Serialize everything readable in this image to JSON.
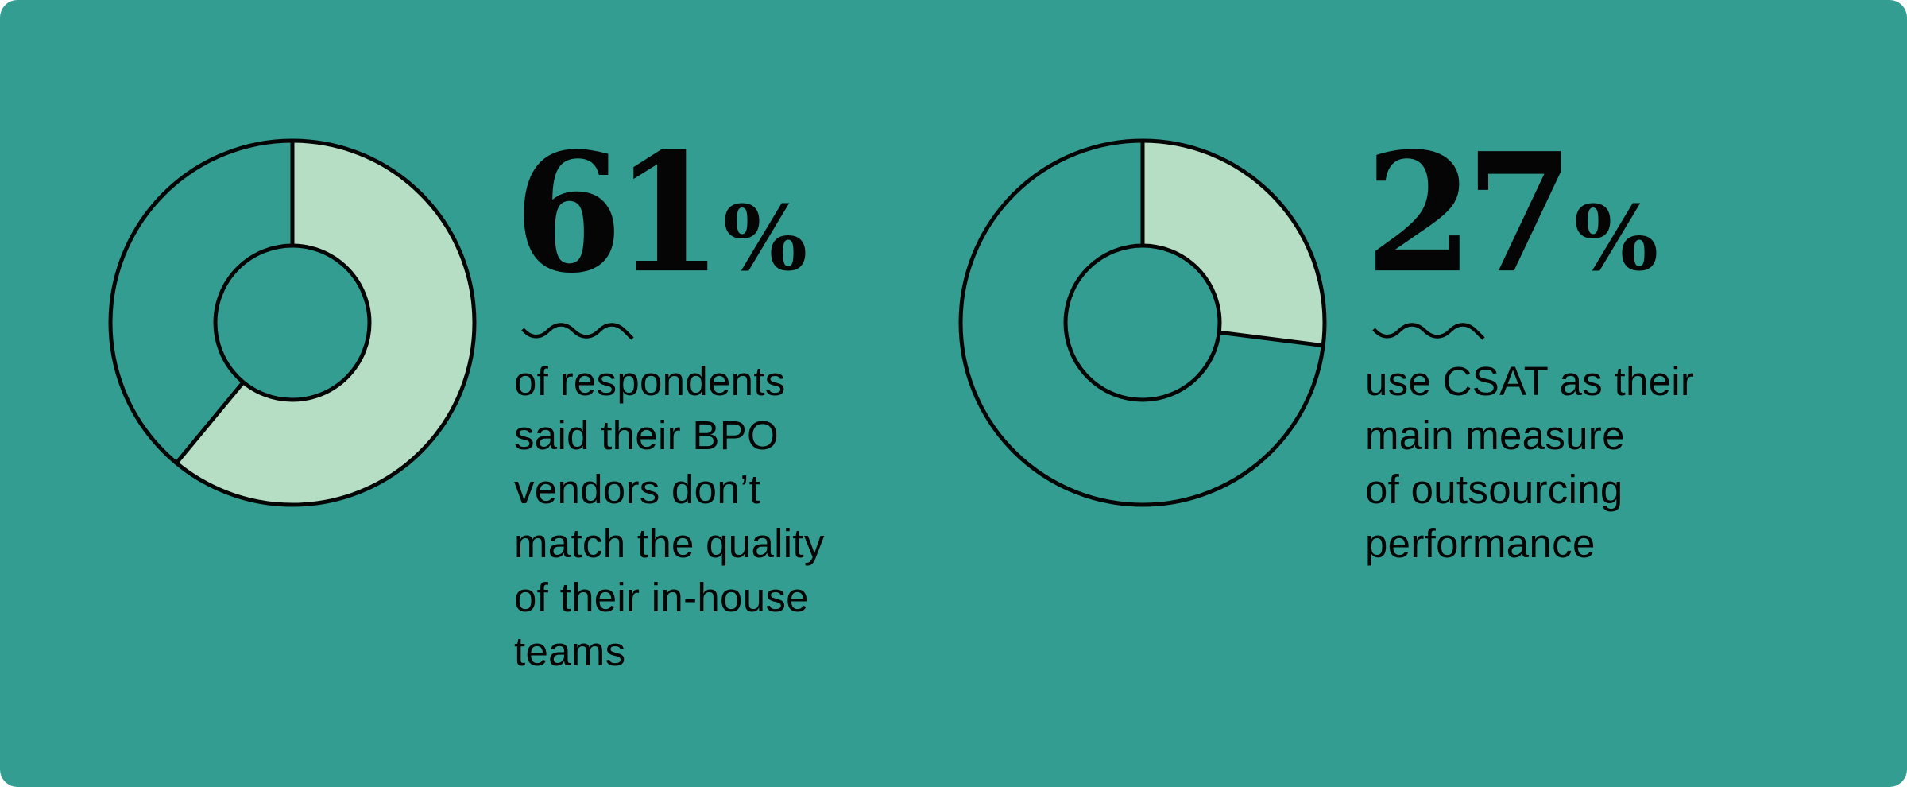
{
  "colors": {
    "background": "#349D91",
    "slice_fill": "#B6DEC5",
    "stroke": "#050505"
  },
  "chart_data": [
    {
      "type": "pie",
      "value": 61,
      "value_label": "61",
      "unit": "%",
      "description_lines": [
        "of respondents",
        "said their BPO",
        "vendors don’t",
        "match the quality",
        "of their in-house",
        "teams"
      ]
    },
    {
      "type": "pie",
      "value": 27,
      "value_label": "27",
      "unit": "%",
      "description_lines": [
        "use CSAT as their",
        "main measure",
        "of outsourcing",
        "performance"
      ]
    }
  ]
}
